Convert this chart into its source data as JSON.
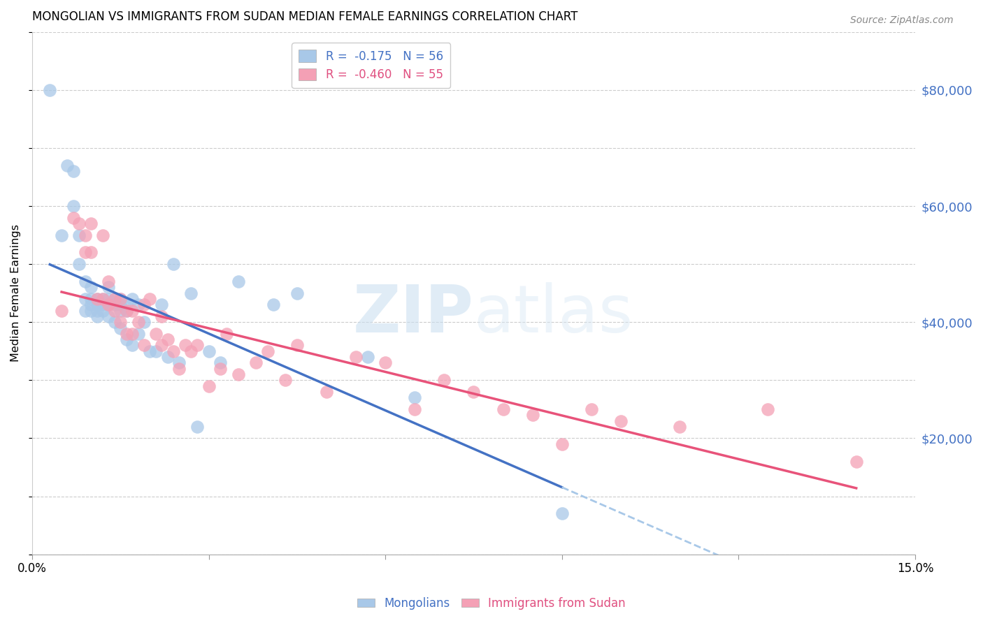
{
  "title": "MONGOLIAN VS IMMIGRANTS FROM SUDAN MEDIAN FEMALE EARNINGS CORRELATION CHART",
  "source": "Source: ZipAtlas.com",
  "ylabel": "Median Female Earnings",
  "y_tick_labels": [
    "$20,000",
    "$40,000",
    "$60,000",
    "$80,000"
  ],
  "y_tick_values": [
    20000,
    40000,
    60000,
    80000
  ],
  "x_tick_values": [
    0.0,
    0.03,
    0.06,
    0.09,
    0.12,
    0.15
  ],
  "xlim": [
    0.0,
    0.15
  ],
  "ylim": [
    0,
    90000
  ],
  "watermark_zip": "ZIP",
  "watermark_atlas": "atlas",
  "blue_color": "#a8c8e8",
  "pink_color": "#f4a0b5",
  "blue_line_color": "#4472c4",
  "pink_line_color": "#e8537a",
  "blue_dashed_color": "#a8c8e8",
  "title_fontsize": 12,
  "mongolians_scatter_x": [
    0.003,
    0.005,
    0.006,
    0.007,
    0.007,
    0.008,
    0.008,
    0.009,
    0.009,
    0.009,
    0.01,
    0.01,
    0.01,
    0.01,
    0.011,
    0.011,
    0.011,
    0.011,
    0.012,
    0.012,
    0.012,
    0.013,
    0.013,
    0.013,
    0.013,
    0.014,
    0.014,
    0.014,
    0.015,
    0.015,
    0.015,
    0.015,
    0.016,
    0.016,
    0.016,
    0.017,
    0.017,
    0.018,
    0.018,
    0.019,
    0.02,
    0.021,
    0.022,
    0.023,
    0.024,
    0.025,
    0.027,
    0.028,
    0.03,
    0.032,
    0.035,
    0.041,
    0.045,
    0.057,
    0.065,
    0.09
  ],
  "mongolians_scatter_y": [
    80000,
    55000,
    67000,
    66000,
    60000,
    55000,
    50000,
    47000,
    44000,
    42000,
    46000,
    44000,
    43000,
    42000,
    44000,
    43000,
    42000,
    41000,
    44000,
    43000,
    42000,
    46000,
    44000,
    43000,
    41000,
    44000,
    43000,
    40000,
    44000,
    43000,
    42000,
    39000,
    43000,
    42000,
    37000,
    44000,
    36000,
    43000,
    38000,
    40000,
    35000,
    35000,
    43000,
    34000,
    50000,
    33000,
    45000,
    22000,
    35000,
    33000,
    47000,
    43000,
    45000,
    34000,
    27000,
    7000
  ],
  "sudan_scatter_x": [
    0.005,
    0.007,
    0.008,
    0.009,
    0.009,
    0.01,
    0.01,
    0.011,
    0.012,
    0.012,
    0.013,
    0.013,
    0.014,
    0.014,
    0.015,
    0.015,
    0.016,
    0.016,
    0.017,
    0.017,
    0.018,
    0.019,
    0.019,
    0.02,
    0.021,
    0.022,
    0.022,
    0.023,
    0.024,
    0.025,
    0.026,
    0.027,
    0.028,
    0.03,
    0.032,
    0.033,
    0.035,
    0.038,
    0.04,
    0.043,
    0.045,
    0.05,
    0.055,
    0.06,
    0.065,
    0.07,
    0.075,
    0.08,
    0.085,
    0.09,
    0.095,
    0.1,
    0.11,
    0.125,
    0.14
  ],
  "sudan_scatter_y": [
    42000,
    58000,
    57000,
    55000,
    52000,
    57000,
    52000,
    44000,
    55000,
    44000,
    47000,
    43000,
    44000,
    42000,
    44000,
    40000,
    42000,
    38000,
    42000,
    38000,
    40000,
    43000,
    36000,
    44000,
    38000,
    41000,
    36000,
    37000,
    35000,
    32000,
    36000,
    35000,
    36000,
    29000,
    32000,
    38000,
    31000,
    33000,
    35000,
    30000,
    36000,
    28000,
    34000,
    33000,
    25000,
    30000,
    28000,
    25000,
    24000,
    19000,
    25000,
    23000,
    22000,
    25000,
    16000
  ]
}
